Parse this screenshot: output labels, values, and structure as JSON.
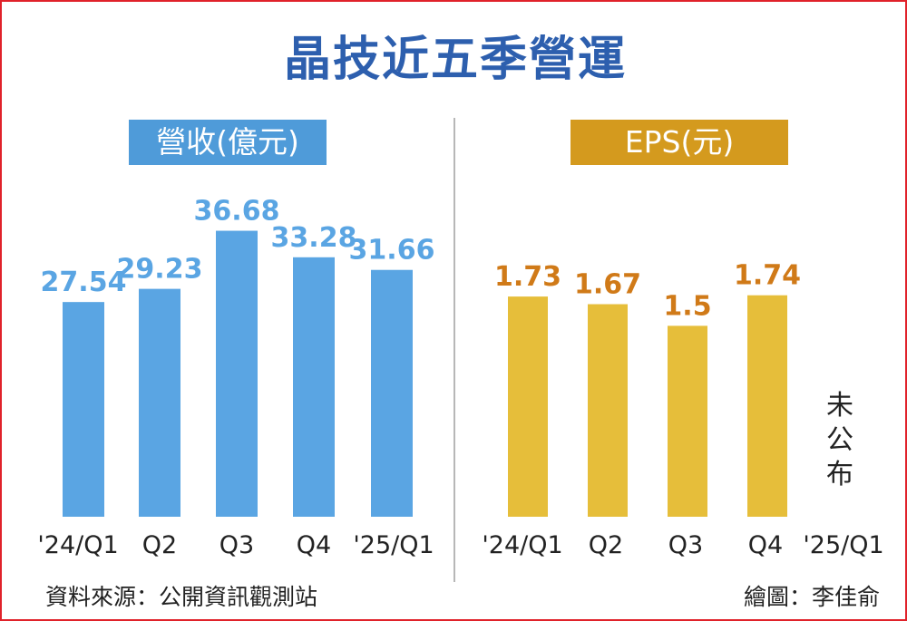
{
  "title": "晶技近五季營運",
  "footer": {
    "source": "資料來源：公開資訊觀測站",
    "credit": "繪圖：李佳俞"
  },
  "colors": {
    "frame": "#e0222a",
    "title": "#2d5fae",
    "revenue_bar": "#5aa5e3",
    "revenue_label": "#5aa5e3",
    "revenue_badge": "#4f9bd9",
    "eps_bar": "#e6be3a",
    "eps_label": "#d07a18",
    "eps_badge": "#d49a1e",
    "axis_text": "#222222"
  },
  "chart_data": [
    {
      "type": "bar",
      "title": "營收(億元)",
      "categories": [
        "'24/Q1",
        "Q2",
        "Q3",
        "Q4",
        "'25/Q1"
      ],
      "values": [
        27.54,
        29.23,
        36.68,
        33.28,
        31.66
      ],
      "value_labels": [
        "27.54",
        "29.23",
        "36.68",
        "33.28",
        "31.66"
      ],
      "xlabel": "",
      "ylabel": ""
    },
    {
      "type": "bar",
      "title": "EPS(元)",
      "categories": [
        "'24/Q1",
        "Q2",
        "Q3",
        "Q4",
        "'25/Q1"
      ],
      "values": [
        1.73,
        1.67,
        1.5,
        1.74,
        null
      ],
      "value_labels": [
        "1.73",
        "1.67",
        "1.5",
        "1.74",
        ""
      ],
      "annotation": "未公布",
      "xlabel": "",
      "ylabel": ""
    }
  ]
}
